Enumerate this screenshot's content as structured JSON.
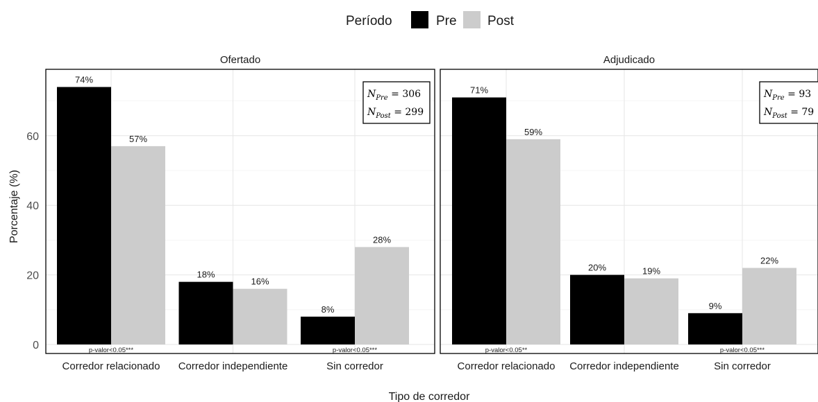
{
  "legend": {
    "title": "Período",
    "items": [
      {
        "label": "Pre",
        "color": "#000000"
      },
      {
        "label": "Post",
        "color": "#cccccc"
      }
    ]
  },
  "chart_data": {
    "type": "bar",
    "xlabel": "Tipo de corredor",
    "ylabel": "Porcentaje (%)",
    "ylim": [
      0,
      75
    ],
    "yticks": [
      0,
      20,
      40,
      60
    ],
    "categories": [
      "Corredor relacionado",
      "Corredor independiente",
      "Sin corredor"
    ],
    "legend_position": "top",
    "grid": true,
    "panels": [
      {
        "title": "Ofertado",
        "series": [
          {
            "name": "Pre",
            "values": [
              74,
              18,
              8
            ],
            "labels": [
              "74%",
              "18%",
              "8%"
            ],
            "color": "#000000"
          },
          {
            "name": "Post",
            "values": [
              57,
              16,
              28
            ],
            "labels": [
              "57%",
              "16%",
              "28%"
            ],
            "color": "#cccccc"
          }
        ],
        "p_values": [
          "p-valor<0.05***",
          "",
          "p-valor<0.05***"
        ],
        "n_box": [
          {
            "var": "N",
            "sub": "Pre",
            "value": "= 306"
          },
          {
            "var": "N",
            "sub": "Post",
            "value": "= 299"
          }
        ]
      },
      {
        "title": "Adjudicado",
        "series": [
          {
            "name": "Pre",
            "values": [
              71,
              20,
              9
            ],
            "labels": [
              "71%",
              "20%",
              "9%"
            ],
            "color": "#000000"
          },
          {
            "name": "Post",
            "values": [
              59,
              19,
              22
            ],
            "labels": [
              "59%",
              "19%",
              "22%"
            ],
            "color": "#cccccc"
          }
        ],
        "p_values": [
          "p-valor<0.05**",
          "",
          "p-valor<0.05***"
        ],
        "n_box": [
          {
            "var": "N",
            "sub": "Pre",
            "value": "= 93"
          },
          {
            "var": "N",
            "sub": "Post",
            "value": "= 79"
          }
        ]
      }
    ]
  }
}
